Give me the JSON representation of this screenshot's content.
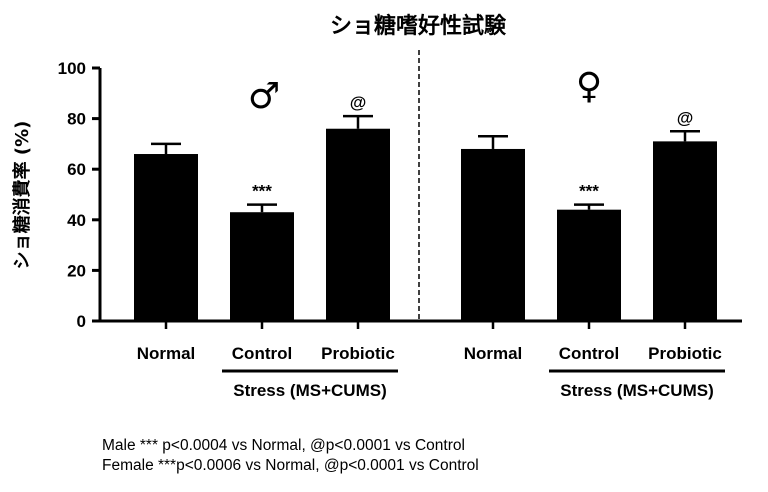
{
  "chart_data": {
    "type": "bar",
    "title": "ショ糖嗜好性試験",
    "ylabel": "ショ糖消費率 (%)",
    "xlabel": "",
    "ylim": [
      0,
      100
    ],
    "yticks": [
      "0",
      "20",
      "40",
      "60",
      "80",
      "100"
    ],
    "grid": false,
    "legend": "none",
    "groups": [
      {
        "name": "Male",
        "symbol": "♂",
        "categories": [
          "Normal",
          "Control",
          "Probiotic"
        ],
        "values": [
          66,
          43,
          76
        ],
        "errors": [
          4,
          3,
          5
        ],
        "annotations": [
          "",
          "***",
          "@"
        ],
        "bracket_label": "Stress (MS+CUMS)"
      },
      {
        "name": "Female",
        "symbol": "♀",
        "categories": [
          "Normal",
          "Control",
          "Probiotic"
        ],
        "values": [
          68,
          44,
          71
        ],
        "errors": [
          5,
          2,
          4
        ],
        "annotations": [
          "",
          "***",
          "@"
        ],
        "bracket_label": "Stress (MS+CUMS)"
      }
    ],
    "footnotes": [
      "Male *** p<0.0004 vs Normal, @p<0.0001 vs Control",
      "Female ***p<0.0006 vs Normal, @p<0.0001 vs Control"
    ],
    "colors": {
      "bar": "#000000",
      "background": "#ffffff"
    }
  }
}
